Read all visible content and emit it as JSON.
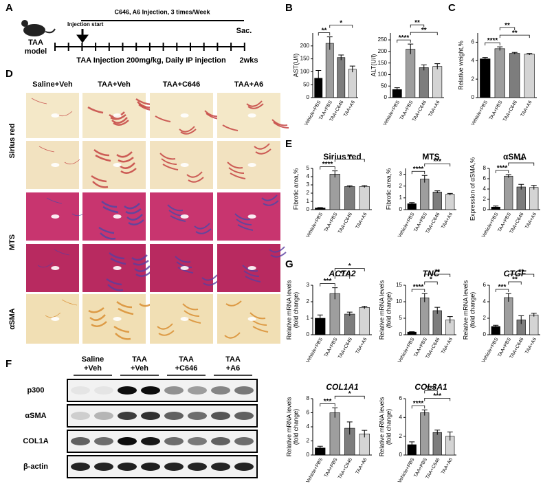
{
  "panels": {
    "a": "A",
    "b": "B",
    "c": "C",
    "d": "D",
    "e": "E",
    "f": "F",
    "g": "G"
  },
  "timeline": {
    "model": [
      "TAA",
      "model"
    ],
    "top_label": "C646, A6 Injection, 3 times/Week",
    "start": "Injection start",
    "end": "Sac.",
    "bottom_label": "TAA Injection 200mg/kg, Daily IP injection",
    "duration": "2wks"
  },
  "histology": {
    "columns": [
      "Saline+Veh",
      "TAA+Veh",
      "TAA+C646",
      "TAA+A6"
    ],
    "rows": [
      "Sirius red",
      "MTS",
      "αSMA"
    ]
  },
  "blot": {
    "groups": [
      [
        "Saline",
        "+Veh"
      ],
      [
        "TAA",
        "+Veh"
      ],
      [
        "TAA",
        "+C646"
      ],
      [
        "TAA",
        "+A6"
      ]
    ],
    "rows": [
      "p300",
      "αSMA",
      "COL1A",
      "β-actin"
    ]
  },
  "chart_data": [
    {
      "type": "bar",
      "ylabel": [
        "AST(U/l)"
      ],
      "categories": [
        "Vehicle+PBS",
        "TAA+PBS",
        "TAA+C646",
        "TAA+A6"
      ],
      "values": [
        75,
        210,
        155,
        110
      ],
      "errors": [
        30,
        25,
        10,
        12
      ],
      "colors": [
        "#000000",
        "#9e9e9e",
        "#7d7d7d",
        "#d4d4d4"
      ],
      "ylim": [
        0,
        250
      ],
      "yticks": [
        0,
        50,
        100,
        150,
        200
      ],
      "significance": [
        {
          "between": [
            0,
            1
          ],
          "label": "**"
        },
        {
          "between": [
            1,
            3
          ],
          "label": "*"
        }
      ]
    },
    {
      "type": "bar",
      "ylabel": [
        "ALT(U/l)"
      ],
      "categories": [
        "Vehicle+PBS",
        "TAA+PBS",
        "TAA+C646",
        "TAA+A6"
      ],
      "values": [
        35,
        210,
        130,
        135
      ],
      "errors": [
        8,
        22,
        12,
        12
      ],
      "colors": [
        "#000000",
        "#9e9e9e",
        "#7d7d7d",
        "#d4d4d4"
      ],
      "ylim": [
        0,
        280
      ],
      "yticks": [
        0,
        50,
        100,
        150,
        200,
        250
      ],
      "significance": [
        {
          "between": [
            0,
            1
          ],
          "label": "****"
        },
        {
          "between": [
            1,
            3
          ],
          "label": "**"
        },
        {
          "between": [
            1,
            2
          ],
          "label": "**"
        }
      ]
    },
    {
      "type": "bar",
      "ylabel": [
        "Relative weight,%"
      ],
      "categories": [
        "Vehicle+PBS",
        "TAA+PBS",
        "TAA+C646",
        "TAA+A6"
      ],
      "values": [
        4.2,
        5.3,
        4.8,
        4.7
      ],
      "errors": [
        0.15,
        0.2,
        0.1,
        0.08
      ],
      "colors": [
        "#000000",
        "#9e9e9e",
        "#7d7d7d",
        "#d4d4d4"
      ],
      "ylim": [
        0,
        7
      ],
      "yticks": [
        0,
        2,
        4,
        6
      ],
      "significance": [
        {
          "between": [
            0,
            1
          ],
          "label": "****"
        },
        {
          "between": [
            1,
            3
          ],
          "label": "**"
        },
        {
          "between": [
            1,
            2
          ],
          "label": "**"
        }
      ]
    },
    {
      "type": "bar",
      "title": "Sirius red",
      "ylabel": [
        "Fibrotic area,%"
      ],
      "categories": [
        "Vehicle+PBS",
        "TAA+PBS",
        "TAA+C646",
        "TAA+A6"
      ],
      "values": [
        0.2,
        4.3,
        2.8,
        2.8
      ],
      "errors": [
        0.05,
        0.4,
        0.1,
        0.12
      ],
      "colors": [
        "#000000",
        "#9e9e9e",
        "#7d7d7d",
        "#d4d4d4"
      ],
      "ylim": [
        0,
        5
      ],
      "yticks": [
        0,
        1,
        2,
        3,
        4,
        5
      ],
      "significance": [
        {
          "between": [
            0,
            1
          ],
          "label": "****"
        },
        {
          "between": [
            1,
            3
          ],
          "label": "**"
        }
      ]
    },
    {
      "type": "bar",
      "title": "MTS",
      "ylabel": [
        "Fibrotic area,%"
      ],
      "categories": [
        "Vehicle+PBS",
        "TAA+PBS",
        "TAA+C646",
        "TAA+A6"
      ],
      "values": [
        0.5,
        2.6,
        1.5,
        1.3
      ],
      "errors": [
        0.1,
        0.3,
        0.1,
        0.08
      ],
      "colors": [
        "#000000",
        "#9e9e9e",
        "#7d7d7d",
        "#d4d4d4"
      ],
      "ylim": [
        0,
        3.5
      ],
      "yticks": [
        0,
        1,
        2,
        3
      ],
      "significance": [
        {
          "between": [
            0,
            1
          ],
          "label": "****"
        },
        {
          "between": [
            1,
            3
          ],
          "label": "***"
        }
      ]
    },
    {
      "type": "bar",
      "title": "αSMA",
      "ylabel": [
        "Expression of αSMA,%"
      ],
      "categories": [
        "Vehicle+PBS",
        "TAA+PBS",
        "TAA+C646",
        "TAA+A6"
      ],
      "values": [
        0.5,
        6.5,
        4.4,
        4.3
      ],
      "errors": [
        0.2,
        0.3,
        0.5,
        0.4
      ],
      "colors": [
        "#000000",
        "#9e9e9e",
        "#7d7d7d",
        "#d4d4d4"
      ],
      "ylim": [
        0,
        8
      ],
      "yticks": [
        0,
        2,
        4,
        6,
        8
      ],
      "significance": [
        {
          "between": [
            0,
            1
          ],
          "label": "****"
        },
        {
          "between": [
            1,
            3
          ],
          "label": "**"
        }
      ]
    },
    {
      "type": "bar",
      "title": "ACTA2",
      "italic": true,
      "ylabel": [
        "Relative mRNA levels",
        "(fold change)"
      ],
      "categories": [
        "Vehicle+PBS",
        "TAA+PBS",
        "TAA+C646",
        "TAA+A6"
      ],
      "values": [
        1.0,
        2.5,
        1.25,
        1.65
      ],
      "errors": [
        0.2,
        0.35,
        0.12,
        0.08
      ],
      "colors": [
        "#000000",
        "#9e9e9e",
        "#7d7d7d",
        "#d4d4d4"
      ],
      "ylim": [
        0,
        3
      ],
      "yticks": [
        0,
        1,
        2,
        3
      ],
      "significance": [
        {
          "between": [
            0,
            1
          ],
          "label": "***"
        },
        {
          "between": [
            1,
            2
          ],
          "label": "**"
        },
        {
          "between": [
            1,
            3
          ],
          "label": "*"
        }
      ]
    },
    {
      "type": "bar",
      "title": "TNC",
      "italic": true,
      "ylabel": [
        "Relative mRNA levels",
        "(fold change)"
      ],
      "categories": [
        "Vehicle+PBS",
        "TAA+PBS",
        "TAA+C646",
        "TAA+A6"
      ],
      "values": [
        0.8,
        11.2,
        7.3,
        4.5
      ],
      "errors": [
        0.1,
        1.3,
        1.0,
        1.0
      ],
      "colors": [
        "#000000",
        "#9e9e9e",
        "#7d7d7d",
        "#d4d4d4"
      ],
      "ylim": [
        0,
        15
      ],
      "yticks": [
        0,
        5,
        10,
        15
      ],
      "significance": [
        {
          "between": [
            0,
            1
          ],
          "label": "****"
        },
        {
          "between": [
            1,
            2
          ],
          "label": "*"
        },
        {
          "between": [
            1,
            3
          ],
          "label": "**"
        }
      ]
    },
    {
      "type": "bar",
      "title": "CTGF",
      "italic": true,
      "ylabel": [
        "Relative mRNA levels",
        "(fold change)"
      ],
      "categories": [
        "Vehicle+PBS",
        "TAA+PBS",
        "TAA+C646",
        "TAA+A6"
      ],
      "values": [
        1.0,
        4.5,
        1.8,
        2.4
      ],
      "errors": [
        0.15,
        0.5,
        0.5,
        0.2
      ],
      "colors": [
        "#000000",
        "#9e9e9e",
        "#7d7d7d",
        "#d4d4d4"
      ],
      "ylim": [
        0,
        6
      ],
      "yticks": [
        0,
        2,
        4,
        6
      ],
      "significance": [
        {
          "between": [
            0,
            1
          ],
          "label": "***"
        },
        {
          "between": [
            1,
            2
          ],
          "label": "**"
        },
        {
          "between": [
            1,
            3
          ],
          "label": "**"
        }
      ]
    },
    {
      "type": "bar",
      "title": "COL1A1",
      "italic": true,
      "ylabel": [
        "Relative mRNA levels",
        "(fold change)"
      ],
      "categories": [
        "Vehicle+PBS",
        "TAA+PBS",
        "TAA+C646",
        "TAA+A6"
      ],
      "values": [
        1.0,
        6.0,
        3.8,
        3.0
      ],
      "errors": [
        0.25,
        0.7,
        0.9,
        0.5
      ],
      "colors": [
        "#000000",
        "#9e9e9e",
        "#7d7d7d",
        "#d4d4d4"
      ],
      "ylim": [
        0,
        8
      ],
      "yticks": [
        0,
        2,
        4,
        6,
        8
      ],
      "significance": [
        {
          "between": [
            0,
            1
          ],
          "label": "***"
        },
        {
          "between": [
            1,
            3
          ],
          "label": "*"
        }
      ]
    },
    {
      "type": "bar",
      "title": "COL3A1",
      "italic": true,
      "ylabel": [
        "Relative mRNA levels",
        "(fold change)"
      ],
      "categories": [
        "Vehicle+PBS",
        "TAA+PBS",
        "TAA+C646",
        "TAA+A6"
      ],
      "values": [
        1.1,
        4.5,
        2.4,
        2.0
      ],
      "errors": [
        0.3,
        0.3,
        0.25,
        0.45
      ],
      "colors": [
        "#000000",
        "#9e9e9e",
        "#7d7d7d",
        "#d4d4d4"
      ],
      "ylim": [
        0,
        6
      ],
      "yticks": [
        0,
        2,
        4,
        6
      ],
      "significance": [
        {
          "between": [
            0,
            1
          ],
          "label": "****"
        },
        {
          "between": [
            1,
            3
          ],
          "label": "***"
        },
        {
          "between": [
            1,
            2
          ],
          "label": "***"
        }
      ]
    }
  ]
}
